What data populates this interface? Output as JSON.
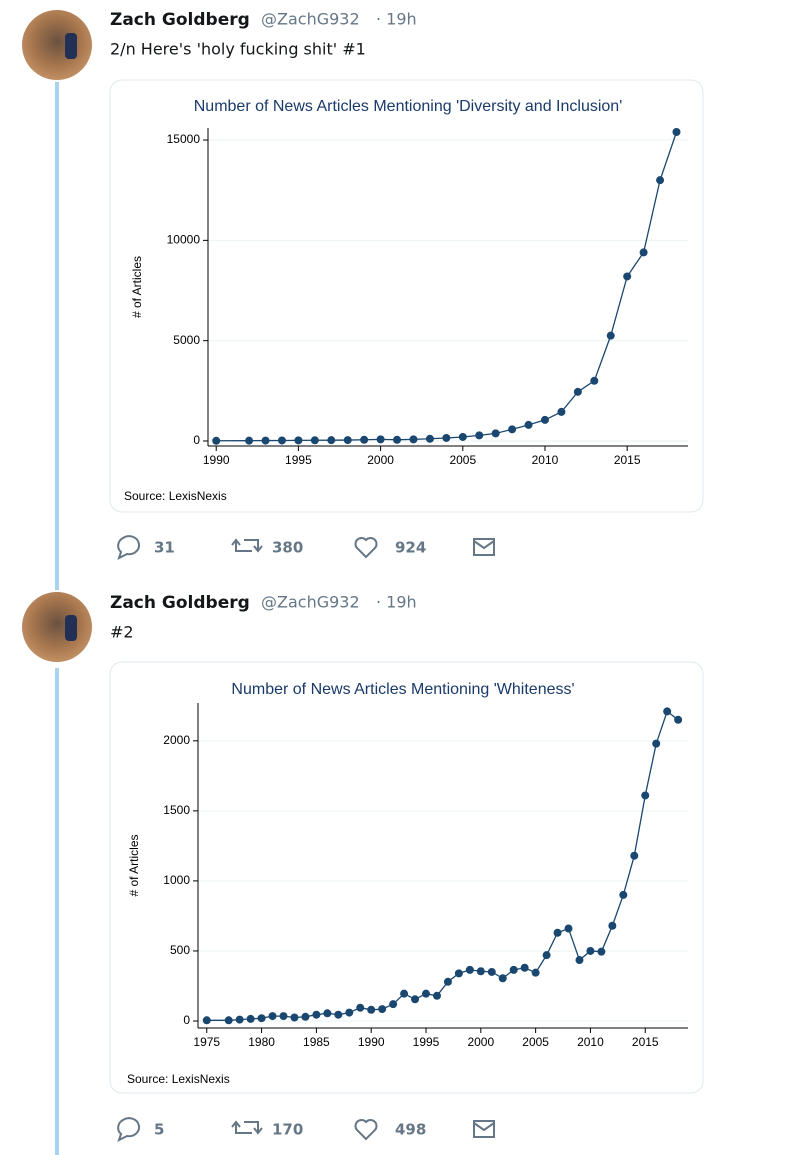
{
  "tweets": [
    {
      "name": "Zach Goldberg",
      "handle": "@ZachG932",
      "time": "· 19h",
      "text": "2/n Here's 'holy fucking shit' #1",
      "replies": "31",
      "retweets": "380",
      "likes": "924"
    },
    {
      "name": "Zach Goldberg",
      "handle": "@ZachG932",
      "time": "· 19h",
      "text": "#2",
      "replies": "5",
      "retweets": "170",
      "likes": "498"
    }
  ],
  "chart_data": [
    {
      "type": "line",
      "title": "Number of News Articles Mentioning 'Diversity and Inclusion'",
      "y_label": "# of Articles",
      "source": "Source: LexisNexis",
      "x": [
        1990,
        1992,
        1993,
        1994,
        1995,
        1996,
        1997,
        1998,
        1999,
        2000,
        2001,
        2002,
        2003,
        2004,
        2005,
        2006,
        2007,
        2008,
        2009,
        2010,
        2011,
        2012,
        2013,
        2014,
        2015,
        2016,
        2017,
        2018
      ],
      "series": [
        {
          "name": "Articles",
          "color": "#1a476f",
          "values": [
            10,
            15,
            20,
            25,
            30,
            35,
            40,
            45,
            60,
            80,
            60,
            80,
            110,
            150,
            200,
            280,
            380,
            580,
            800,
            1050,
            1450,
            2450,
            3000,
            5250,
            8200,
            9400,
            13000,
            15400
          ]
        }
      ],
      "xlim": [
        1989.5,
        2018.7
      ],
      "ylim": [
        -250,
        15600
      ],
      "xticks": [
        1990,
        1995,
        2000,
        2005,
        2010,
        2015
      ],
      "yticks": [
        0,
        5000,
        10000,
        15000
      ],
      "grid": true
    },
    {
      "type": "line",
      "title": "Number of News Articles Mentioning 'Whiteness'",
      "y_label": "# of Articles",
      "source": "Source: LexisNexis",
      "x": [
        1975,
        1977,
        1978,
        1979,
        1980,
        1981,
        1982,
        1983,
        1984,
        1985,
        1986,
        1987,
        1988,
        1989,
        1990,
        1991,
        1992,
        1993,
        1994,
        1995,
        1996,
        1997,
        1998,
        1999,
        2000,
        2001,
        2002,
        2003,
        2004,
        2005,
        2006,
        2007,
        2008,
        2009,
        2010,
        2011,
        2012,
        2013,
        2014,
        2015,
        2016,
        2017,
        2018
      ],
      "series": [
        {
          "name": "Articles",
          "color": "#1a476f",
          "values": [
            5,
            5,
            10,
            15,
            20,
            35,
            35,
            25,
            30,
            45,
            55,
            45,
            60,
            95,
            80,
            85,
            120,
            195,
            155,
            195,
            180,
            280,
            340,
            365,
            355,
            350,
            305,
            365,
            380,
            345,
            470,
            630,
            660,
            435,
            500,
            495,
            680,
            900,
            1180,
            1610,
            1980,
            2210,
            2150
          ]
        }
      ],
      "xlim": [
        1974.2,
        2018.9
      ],
      "ylim": [
        -50,
        2270
      ],
      "xticks": [
        1975,
        1980,
        1985,
        1990,
        1995,
        2000,
        2005,
        2010,
        2015
      ],
      "yticks": [
        0,
        500,
        1000,
        1500,
        2000
      ],
      "grid": true
    }
  ]
}
